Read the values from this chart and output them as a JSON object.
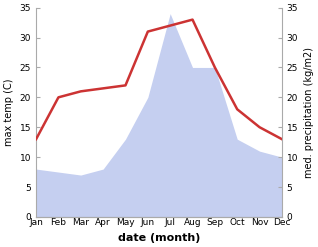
{
  "months": [
    "Jan",
    "Feb",
    "Mar",
    "Apr",
    "May",
    "Jun",
    "Jul",
    "Aug",
    "Sep",
    "Oct",
    "Nov",
    "Dec"
  ],
  "temperature": [
    13.0,
    20.0,
    21.0,
    21.5,
    22.0,
    31.0,
    32.0,
    33.0,
    25.0,
    18.0,
    15.0,
    13.0
  ],
  "precipitation": [
    8.0,
    7.5,
    7.0,
    8.0,
    13.0,
    20.0,
    34.0,
    25.0,
    25.0,
    13.0,
    11.0,
    10.0
  ],
  "temp_color": "#cc3333",
  "precip_color": "#c5cff0",
  "ylim": [
    0,
    35
  ],
  "yticks": [
    0,
    5,
    10,
    15,
    20,
    25,
    30,
    35
  ],
  "ylabel_left": "max temp (C)",
  "ylabel_right": "med. precipitation (kg/m2)",
  "xlabel": "date (month)",
  "background_color": "#ffffff",
  "spine_color": "#aaaaaa",
  "temp_linewidth": 1.8,
  "xlabel_fontsize": 8,
  "ylabel_fontsize": 7,
  "tick_fontsize": 6.5
}
